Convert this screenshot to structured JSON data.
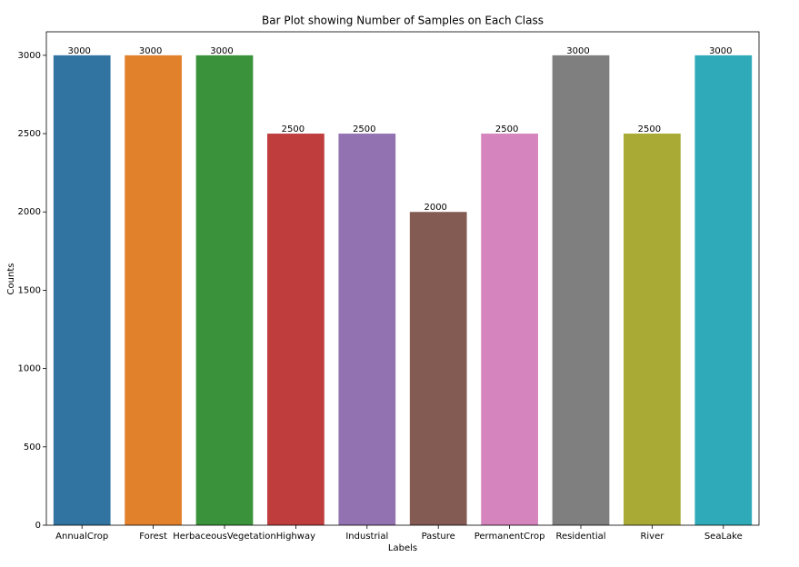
{
  "chart_data": {
    "type": "bar",
    "title": "Bar Plot showing Number of Samples on Each Class",
    "x_label": "Labels",
    "y_label": "Counts",
    "categories": [
      "AnnualCrop",
      "Forest",
      "HerbaceousVegetation",
      "Highway",
      "Industrial",
      "Pasture",
      "PermanentCrop",
      "Residential",
      "River",
      "SeaLake"
    ],
    "values": [
      3000,
      3000,
      3000,
      2500,
      2500,
      2000,
      2500,
      3000,
      2500,
      3000
    ],
    "colors": [
      "#3274a1",
      "#e1812c",
      "#3a923a",
      "#c03d3e",
      "#9372b2",
      "#845b53",
      "#d684bd",
      "#7f7f7f",
      "#a9aa35",
      "#2eaab8"
    ],
    "ylim": [
      0,
      3150
    ],
    "yticks": [
      0,
      500,
      1000,
      1500,
      2000,
      2500,
      3000
    ],
    "grid": false
  }
}
